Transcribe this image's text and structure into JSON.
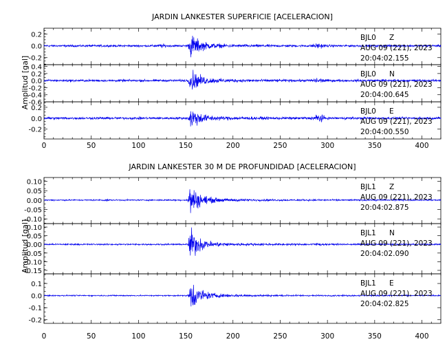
{
  "chart_data": [
    {
      "type": "line",
      "title": "JARDIN LANKESTER SUPERFICIE [ACELERACION]",
      "ylabel": "Amplitud [gal]",
      "xlim": [
        0,
        420
      ],
      "x_ticks": [
        "0",
        "50",
        "100",
        "150",
        "200",
        "250",
        "300",
        "350",
        "400"
      ],
      "traces": [
        {
          "station": "BJL0",
          "component": "Z",
          "date": "AUG 09 (221), 2023",
          "time": "20:04:02.155",
          "ylim": [
            -0.32,
            0.3
          ],
          "y_ticks": [
            "0.2",
            "0.0",
            "-0.2"
          ],
          "quiet_amp": 0.025,
          "peak": 0.27,
          "onset": 152,
          "peak_at": 155,
          "bursts": [
            {
              "t": 290,
              "amp": 0.04,
              "w": 6
            },
            {
              "t": 125,
              "amp": 0.025,
              "w": 4
            }
          ]
        },
        {
          "station": "BJL0",
          "component": "N",
          "date": "AUG 09 (221), 2023",
          "time": "20:04:00.645",
          "ylim": [
            -0.6,
            0.45
          ],
          "y_ticks": [
            "0.4",
            "0.2",
            "0.0",
            "-0.2",
            "-0.4",
            "-0.6"
          ],
          "quiet_amp": 0.045,
          "peak": 0.42,
          "onset": 152,
          "peak_at": 155,
          "bursts": [
            {
              "t": 290,
              "amp": 0.07,
              "w": 6
            }
          ]
        },
        {
          "station": "BJL0",
          "component": "E",
          "date": "AUG 09 (221), 2023",
          "time": "20:04:00.550",
          "ylim": [
            -0.38,
            0.3
          ],
          "y_ticks": [
            "0.2",
            "0.0",
            "-0.2"
          ],
          "quiet_amp": 0.03,
          "peak": 0.27,
          "onset": 152,
          "peak_at": 155,
          "bursts": [
            {
              "t": 291,
              "amp": 0.09,
              "w": 5
            }
          ]
        }
      ]
    },
    {
      "type": "line",
      "title": "JARDIN LANKESTER 30 M DE PROFUNDIDAD [ACELERACION]",
      "ylabel": "Amplitud [gal]",
      "xlim": [
        0,
        420
      ],
      "x_ticks": [
        "0",
        "50",
        "100",
        "150",
        "200",
        "250",
        "300",
        "350",
        "400"
      ],
      "traces": [
        {
          "station": "BJL1",
          "component": "Z",
          "date": "AUG 09 (221), 2023",
          "time": "20:04:02.875",
          "ylim": [
            -0.125,
            0.12
          ],
          "y_ticks": [
            "0.10",
            "0.05",
            "0.00",
            "-0.05",
            "-0.10"
          ],
          "quiet_amp": 0.005,
          "peak": 0.115,
          "onset": 152,
          "peak_at": 154,
          "bursts": [
            {
              "t": 65,
              "amp": 0.004,
              "w": 3
            }
          ]
        },
        {
          "station": "BJL1",
          "component": "N",
          "date": "AUG 09 (221), 2023",
          "time": "20:04:02.090",
          "ylim": [
            -0.17,
            0.12
          ],
          "y_ticks": [
            "0.10",
            "0.05",
            "0.00",
            "-0.05",
            "-0.10",
            "-0.15"
          ],
          "quiet_amp": 0.006,
          "peak": 0.13,
          "onset": 152,
          "peak_at": 154,
          "bursts": [
            {
              "t": 290,
              "amp": 0.006,
              "w": 4
            }
          ]
        },
        {
          "station": "BJL1",
          "component": "E",
          "date": "AUG 09 (221), 2023",
          "time": "20:04:02.825",
          "ylim": [
            -0.23,
            0.18
          ],
          "y_ticks": [
            "0.1",
            "0.0",
            "-0.1",
            "-0.2"
          ],
          "quiet_amp": 0.007,
          "peak": 0.19,
          "onset": 152,
          "peak_at": 154,
          "bursts": []
        }
      ]
    }
  ],
  "colors": {
    "trace": "#0000ee",
    "axes": "#000000",
    "background": "#ffffff"
  }
}
